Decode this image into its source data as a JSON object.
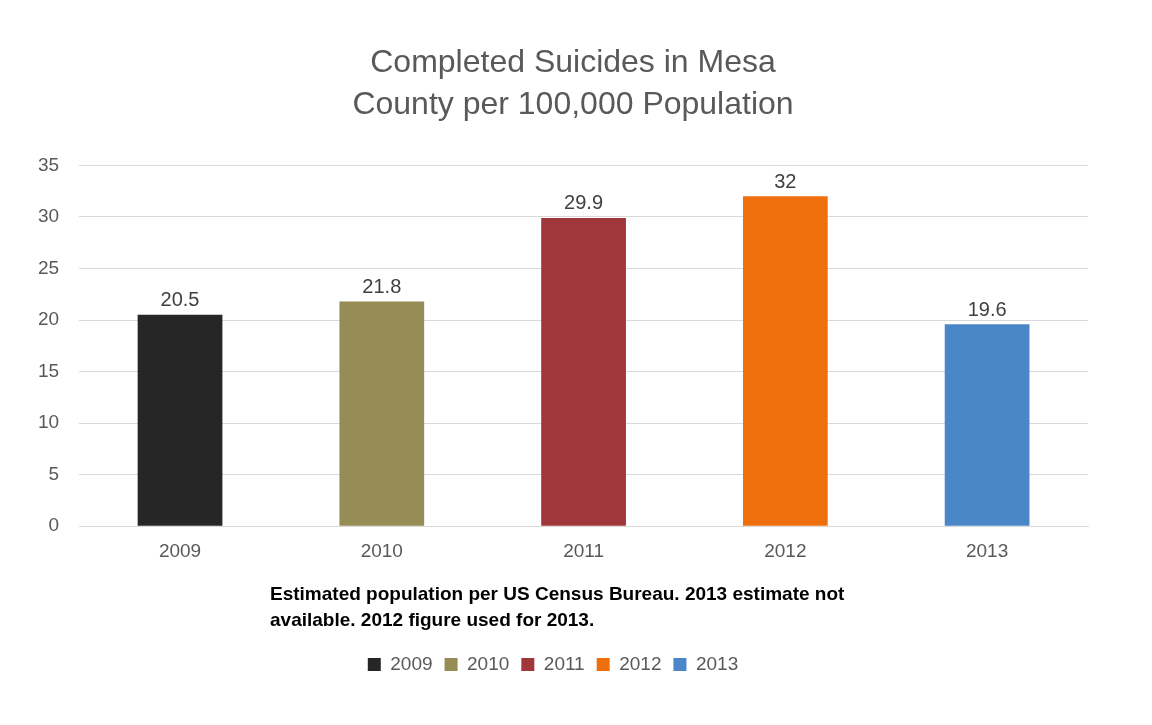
{
  "chart_data": {
    "type": "bar",
    "title": "Completed Suicides in Mesa County per 100,000 Population",
    "categories": [
      "2009",
      "2010",
      "2011",
      "2012",
      "2013"
    ],
    "series": [
      {
        "name": "2009",
        "color": "#262626",
        "values": [
          20.5,
          null,
          null,
          null,
          null
        ]
      },
      {
        "name": "2010",
        "color": "#968c56",
        "values": [
          null,
          21.8,
          null,
          null,
          null
        ]
      },
      {
        "name": "2011",
        "color": "#a0373a",
        "values": [
          null,
          null,
          29.9,
          null,
          null
        ]
      },
      {
        "name": "2012",
        "color": "#f06f0d",
        "values": [
          null,
          null,
          null,
          32,
          null
        ]
      },
      {
        "name": "2013",
        "color": "#4a86c8",
        "values": [
          null,
          null,
          null,
          null,
          19.6
        ]
      }
    ],
    "ylim": [
      0,
      35
    ],
    "yticks": [
      0,
      5,
      10,
      15,
      20,
      25,
      30,
      35
    ],
    "grid": "y",
    "data_labels": true,
    "legend": "bottom",
    "annotations": [
      "Estimated population per US Census Bureau. 2013 estimate not available. 2012 figure used for 2013."
    ]
  }
}
